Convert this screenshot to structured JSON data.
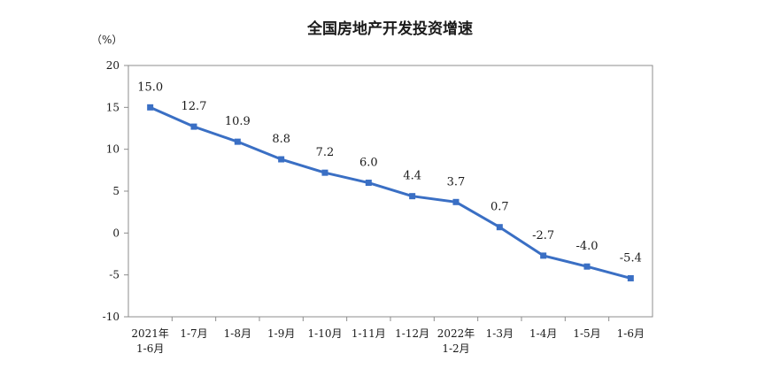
{
  "chart_data": {
    "type": "line",
    "title": "全国房地产开发投资增速",
    "ylabel": "（%）",
    "xlabel": "",
    "ylim": [
      -10,
      20
    ],
    "yticks": [
      20,
      15,
      10,
      5,
      0,
      -5,
      -10
    ],
    "grid": false,
    "legend": "none",
    "categories": [
      [
        "2021年",
        "1-6月"
      ],
      [
        "1-7月"
      ],
      [
        "1-8月"
      ],
      [
        "1-9月"
      ],
      [
        "1-10月"
      ],
      [
        "1-11月"
      ],
      [
        "1-12月"
      ],
      [
        "2022年",
        "1-2月"
      ],
      [
        "1-3月"
      ],
      [
        "1-4月"
      ],
      [
        "1-5月"
      ],
      [
        "1-6月"
      ]
    ],
    "series": [
      {
        "values": [
          15.0,
          12.7,
          10.9,
          8.8,
          7.2,
          6.0,
          4.4,
          3.7,
          0.7,
          -2.7,
          -4.0,
          -5.4
        ],
        "labels": [
          "15.0",
          "12.7",
          "10.9",
          "8.8",
          "7.2",
          "6.0",
          "4.4",
          "3.7",
          "0.7",
          "-2.7",
          "-4.0",
          "-5.4"
        ],
        "color": "#3a6fc4"
      }
    ],
    "axis_color": "#8c8c8c"
  }
}
